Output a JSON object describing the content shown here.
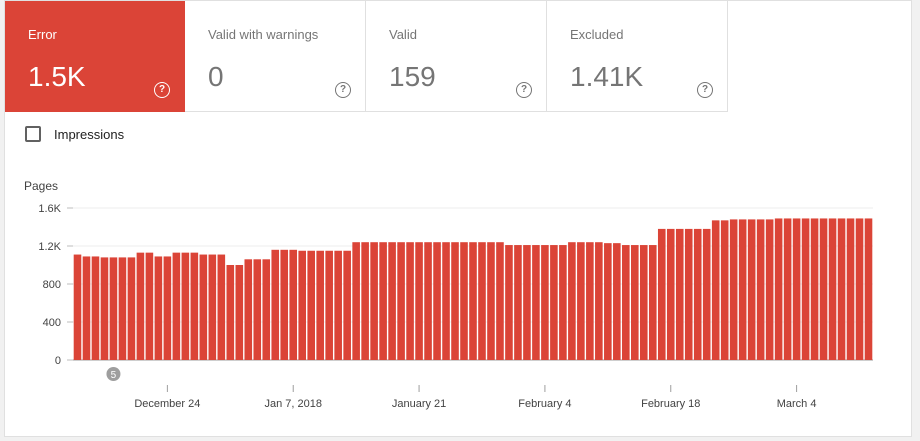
{
  "tiles": [
    {
      "label": "Error",
      "value": "1.5K",
      "help": "?",
      "color": "#db4437"
    },
    {
      "label": "Valid with warnings",
      "value": "0",
      "help": "?"
    },
    {
      "label": "Valid",
      "value": "159",
      "help": "?"
    },
    {
      "label": "Excluded",
      "value": "1.41K",
      "help": "?"
    }
  ],
  "impressions_label": "Impressions",
  "chart_data": {
    "type": "bar",
    "ylabel": "Pages",
    "ylim": [
      0,
      1600
    ],
    "yticks": [
      {
        "value": 0,
        "label": "0"
      },
      {
        "value": 400,
        "label": "400"
      },
      {
        "value": 800,
        "label": "800"
      },
      {
        "value": 1200,
        "label": "1.2K"
      },
      {
        "value": 1600,
        "label": "1.6K"
      }
    ],
    "xticks": [
      {
        "index": 10,
        "label": "December 24"
      },
      {
        "index": 24,
        "label": "Jan 7, 2018"
      },
      {
        "index": 38,
        "label": "January 21"
      },
      {
        "index": 52,
        "label": "February 4"
      },
      {
        "index": 66,
        "label": "February 18"
      },
      {
        "index": 80,
        "label": "March 4"
      }
    ],
    "annotation": {
      "index": 4,
      "label": "5"
    },
    "color": "#db4437",
    "grid": true,
    "values": [
      1110,
      1090,
      1090,
      1080,
      1080,
      1080,
      1080,
      1130,
      1130,
      1090,
      1090,
      1130,
      1130,
      1130,
      1110,
      1110,
      1110,
      1000,
      1000,
      1060,
      1060,
      1060,
      1160,
      1160,
      1160,
      1150,
      1150,
      1150,
      1150,
      1150,
      1150,
      1240,
      1240,
      1240,
      1240,
      1240,
      1240,
      1240,
      1240,
      1240,
      1240,
      1240,
      1240,
      1240,
      1240,
      1240,
      1240,
      1240,
      1210,
      1210,
      1210,
      1210,
      1210,
      1210,
      1210,
      1240,
      1240,
      1240,
      1240,
      1230,
      1230,
      1210,
      1210,
      1210,
      1210,
      1380,
      1380,
      1380,
      1380,
      1380,
      1380,
      1470,
      1470,
      1480,
      1480,
      1480,
      1480,
      1480,
      1490,
      1490,
      1490,
      1490,
      1490,
      1490,
      1490,
      1490,
      1490,
      1490,
      1490
    ]
  }
}
